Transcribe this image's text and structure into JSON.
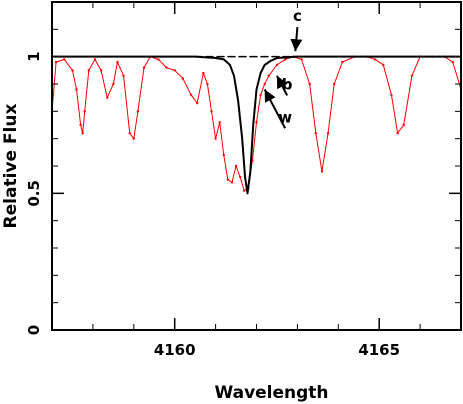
{
  "chart_data": {
    "type": "line",
    "title": "",
    "xlabel": "Wavelength",
    "ylabel": "Relative Flux",
    "xlim": [
      4157,
      4167
    ],
    "ylim": [
      0,
      1.2
    ],
    "x_ticks": [
      4160,
      4165
    ],
    "y_ticks": [
      0,
      0.5,
      1
    ],
    "x_tick_labels": [
      "4160",
      "4165"
    ],
    "y_tick_labels": [
      "0",
      "0.5",
      "1"
    ],
    "grid": false,
    "series": [
      {
        "name": "",
        "color": "#ff0000",
        "style": "line with point markers",
        "x": [
          4157.0,
          4157.1,
          4157.3,
          4157.5,
          4157.6,
          4157.7,
          4157.75,
          4157.8,
          4157.9,
          4158.05,
          4158.2,
          4158.35,
          4158.5,
          4158.6,
          4158.75,
          4158.9,
          4159.0,
          4159.1,
          4159.25,
          4159.4,
          4159.6,
          4159.8,
          4160.0,
          4160.2,
          4160.4,
          4160.55,
          4160.7,
          4160.8,
          4160.9,
          4161.0,
          4161.1,
          4161.2,
          4161.3,
          4161.4,
          4161.5,
          4161.6,
          4161.7,
          4161.8,
          4161.9,
          4162.0,
          4162.1,
          4162.2,
          4162.3,
          4162.5,
          4162.7,
          4162.9,
          4163.1,
          4163.3,
          4163.45,
          4163.6,
          4163.75,
          4163.9,
          4164.1,
          4164.4,
          4164.7,
          4164.9,
          4165.1,
          4165.3,
          4165.45,
          4165.6,
          4165.8,
          4166.0,
          4166.3,
          4166.6,
          4166.8,
          4167.0
        ],
        "y": [
          0.8,
          0.98,
          0.99,
          0.95,
          0.88,
          0.75,
          0.72,
          0.8,
          0.95,
          0.99,
          0.95,
          0.85,
          0.9,
          0.98,
          0.93,
          0.72,
          0.7,
          0.8,
          0.96,
          1.0,
          0.99,
          0.96,
          0.95,
          0.92,
          0.86,
          0.83,
          0.94,
          0.9,
          0.8,
          0.7,
          0.76,
          0.64,
          0.55,
          0.54,
          0.6,
          0.56,
          0.51,
          0.52,
          0.62,
          0.76,
          0.86,
          0.9,
          0.93,
          0.97,
          0.99,
          1.0,
          0.99,
          0.9,
          0.72,
          0.58,
          0.72,
          0.9,
          0.98,
          1.0,
          1.0,
          0.99,
          0.97,
          0.86,
          0.72,
          0.75,
          0.93,
          1.0,
          1.0,
          1.0,
          0.98,
          0.88
        ]
      },
      {
        "name": "",
        "color": "#000000",
        "style": "solid line",
        "x": [
          4157.0,
          4159.0,
          4160.5,
          4161.0,
          4161.2,
          4161.35,
          4161.45,
          4161.55,
          4161.65,
          4161.72,
          4161.78,
          4161.85,
          4161.92,
          4162.0,
          4162.1,
          4162.2,
          4162.35,
          4162.5,
          4163.0,
          4164.0,
          4167.0
        ],
        "y": [
          1.0,
          1.0,
          1.0,
          0.995,
          0.99,
          0.97,
          0.93,
          0.84,
          0.7,
          0.56,
          0.5,
          0.58,
          0.75,
          0.88,
          0.94,
          0.97,
          0.985,
          0.995,
          1.0,
          1.0,
          1.0
        ]
      },
      {
        "name": "",
        "color": "#000000",
        "style": "dashed line",
        "x": [
          4157.0,
          4167.0
        ],
        "y": [
          1.0,
          1.0
        ]
      }
    ],
    "annotations": [
      {
        "text": "c",
        "x": 4163.0,
        "y": 1.13,
        "arrow_to_x": 4162.95,
        "arrow_to_y": 1.02
      },
      {
        "text": "b",
        "x": 4162.75,
        "y": 0.88,
        "arrow_to_x": 4162.5,
        "arrow_to_y": 0.93
      },
      {
        "text": "w",
        "x": 4162.7,
        "y": 0.76,
        "arrow_to_x": 4162.2,
        "arrow_to_y": 0.88
      }
    ]
  }
}
